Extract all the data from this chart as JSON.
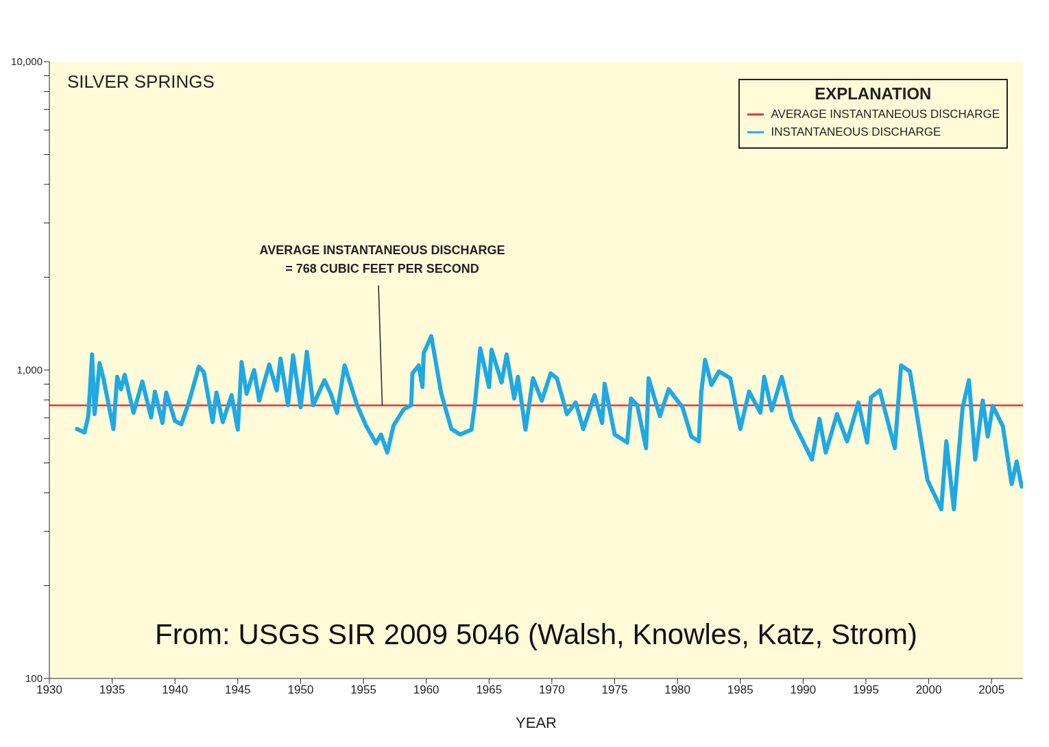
{
  "chart_data": {
    "type": "line",
    "title": "SILVER SPRINGS",
    "xlabel": "YEAR",
    "legend_title": "EXPLANATION",
    "legend": "top right",
    "log": "y",
    "marker": "none",
    "line_style": "solid",
    "xlim": [
      1930,
      2007.5
    ],
    "xticks": [
      1930,
      1935,
      1940,
      1945,
      1950,
      1955,
      1960,
      1965,
      1970,
      1975,
      1980,
      1985,
      1990,
      1995,
      2000,
      2005
    ],
    "ylim": [
      100,
      10000
    ],
    "yticks": [
      100,
      {
        "value": 200,
        "label": null
      },
      {
        "value": 300,
        "label": null
      },
      {
        "value": 400,
        "label": null
      },
      {
        "value": 500,
        "label": null
      },
      {
        "value": 600,
        "label": null
      },
      {
        "value": 700,
        "label": null
      },
      {
        "value": 800,
        "label": null
      },
      {
        "value": 900,
        "label": null
      },
      {
        "value": 1000,
        "label": "1,000"
      },
      {
        "value": 2000,
        "label": null
      },
      {
        "value": 3000,
        "label": null
      },
      {
        "value": 4000,
        "label": null
      },
      {
        "value": 5000,
        "label": null
      },
      {
        "value": 6000,
        "label": null
      },
      {
        "value": 7000,
        "label": null
      },
      {
        "value": 8000,
        "label": null
      },
      {
        "value": 9000,
        "label": null
      },
      {
        "value": 10000,
        "label": "10,000"
      }
    ],
    "series": [
      {
        "name": "AVERAGE INSTANTANEOUS DISCHARGE",
        "color": "#e8303a",
        "x": [
          1930,
          2007.5
        ],
        "values": [
          768,
          768
        ]
      },
      {
        "name": "INSTANTANEOUS DISCHARGE",
        "color": "#1fa8e6",
        "x": [
          1932.2,
          1932.8,
          1933.1,
          1933.4,
          1933.6,
          1934.0,
          1934.3,
          1935.1,
          1935.4,
          1935.7,
          1936.0,
          1936.7,
          1937.4,
          1938.1,
          1938.4,
          1939.0,
          1939.3,
          1940.0,
          1940.5,
          1941.1,
          1941.9,
          1942.3,
          1943.0,
          1943.3,
          1943.8,
          1944.5,
          1945.0,
          1945.3,
          1945.7,
          1946.3,
          1946.7,
          1947.5,
          1948.1,
          1948.4,
          1949.0,
          1949.4,
          1950.0,
          1950.5,
          1951.0,
          1951.9,
          1952.4,
          1952.9,
          1953.5,
          1954.5,
          1955.2,
          1956.0,
          1956.4,
          1956.9,
          1957.4,
          1958.2,
          1958.8,
          1958.9,
          1959.4,
          1959.7,
          1959.8,
          1960.4,
          1961.2,
          1962.0,
          1962.7,
          1963.6,
          1963.9,
          1964.3,
          1965.0,
          1965.2,
          1966.0,
          1966.4,
          1967.0,
          1967.3,
          1967.9,
          1968.5,
          1969.2,
          1969.9,
          1970.4,
          1971.2,
          1971.9,
          1972.5,
          1973.4,
          1974.0,
          1974.2,
          1975.0,
          1976.0,
          1976.3,
          1976.8,
          1977.5,
          1977.7,
          1978.6,
          1979.3,
          1980.4,
          1981.1,
          1981.7,
          1981.9,
          1982.2,
          1982.7,
          1983.3,
          1984.2,
          1985.0,
          1985.7,
          1986.6,
          1986.9,
          1987.5,
          1988.3,
          1989.1,
          1990.7,
          1991.3,
          1991.8,
          1992.7,
          1993.5,
          1994.4,
          1995.1,
          1995.4,
          1996.1,
          1997.3,
          1997.8,
          1998.5,
          1999.2,
          1999.9,
          2001.0,
          2001.4,
          2002.0,
          2002.7,
          2003.2,
          2003.7,
          2004.3,
          2004.7,
          2005.1,
          2005.9,
          2006.6,
          2007.0,
          2007.4
        ],
        "values": [
          644,
          628,
          709,
          1124,
          720,
          1052,
          941,
          644,
          951,
          867,
          965,
          727,
          918,
          702,
          851,
          674,
          846,
          684,
          667,
          785,
          1025,
          985,
          678,
          846,
          678,
          829,
          641,
          1062,
          838,
          1000,
          796,
          1042,
          859,
          1090,
          769,
          1117,
          757,
          1146,
          769,
          927,
          838,
          727,
          1035,
          769,
          661,
          579,
          618,
          540,
          661,
          746,
          769,
          975,
          1035,
          881,
          1135,
          1288,
          838,
          644,
          618,
          641,
          796,
          1175,
          881,
          1164,
          912,
          1124,
          809,
          951,
          641,
          941,
          796,
          975,
          941,
          720,
          785,
          644,
          829,
          674,
          903,
          618,
          582,
          809,
          769,
          558,
          941,
          709,
          867,
          757,
          609,
          587,
          851,
          1079,
          895,
          990,
          941,
          644,
          851,
          727,
          951,
          740,
          951,
          695,
          513,
          695,
          540,
          720,
          587,
          785,
          582,
          816,
          859,
          558,
          1035,
          990,
          661,
          440,
          354,
          587,
          354,
          757,
          927,
          513,
          796,
          609,
          765,
          657,
          427,
          505,
          419
        ]
      }
    ],
    "annotations": [
      {
        "text": "AVERAGE INSTANTANEOUS DISCHARGE\n= 768 CUBIC FEET PER SECOND",
        "x": 1956.5,
        "y": 768
      },
      "From: USGS SIR 2009 5046 (Walsh, Knowles, Katz, Strom)"
    ]
  }
}
